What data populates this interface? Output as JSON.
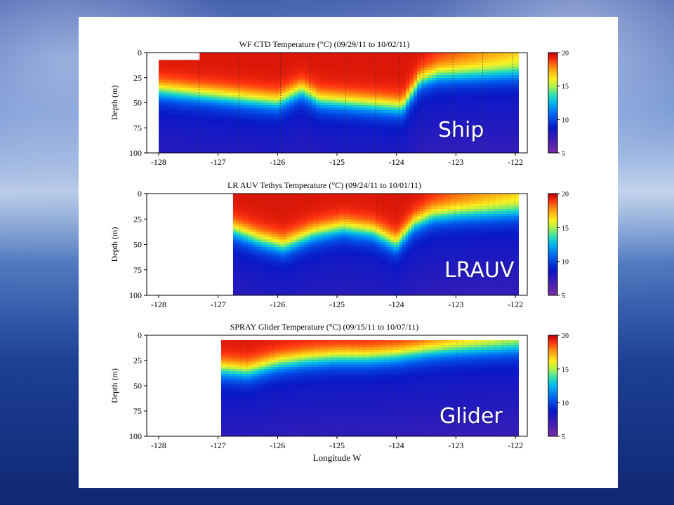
{
  "slide": {
    "labels": [
      "Ship",
      "LRAUV",
      "Glider"
    ]
  },
  "chart_data": [
    {
      "type": "heatmap",
      "title": "WF CTD Temperature (°C) (09/29/11 to 10/02/11)",
      "xlabel": "",
      "ylabel": "Depth (m)",
      "x_ticks": [
        -128,
        -127,
        -126,
        -125,
        -124,
        -123,
        -122
      ],
      "y_ticks": [
        0,
        25,
        50,
        75,
        100
      ],
      "xlim": [
        -128.2,
        -121.8
      ],
      "ylim": [
        100,
        0
      ],
      "y_inverted": true,
      "colorbar": {
        "ticks": [
          5,
          10,
          15,
          20
        ],
        "range": [
          5,
          20
        ]
      },
      "data_extent": {
        "lon": [
          -128.0,
          -121.95
        ],
        "depth": [
          0,
          100
        ],
        "no_data_notch": {
          "lon": [
            -128.0,
            -127.32
          ],
          "depth": [
            0,
            8
          ]
        }
      },
      "station_lons": [
        -127.32,
        -126.65,
        -125.95,
        -125.45,
        -124.85,
        -124.35,
        -123.95,
        -123.55,
        -123.05,
        -122.55,
        -122.05
      ],
      "thermocline_depth": {
        "lon": [
          -128.0,
          -127.0,
          -126.0,
          -125.6,
          -125.3,
          -124.5,
          -123.9,
          -123.6,
          -123.3,
          -122.0
        ],
        "depth": [
          38,
          44,
          50,
          38,
          48,
          52,
          55,
          28,
          22,
          20
        ]
      }
    },
    {
      "type": "heatmap",
      "title": "LR AUV Tethys Temperature (°C) (09/24/11 to 10/01/11)",
      "xlabel": "",
      "ylabel": "Depth (m)",
      "x_ticks": [
        -128,
        -127,
        -126,
        -125,
        -124,
        -123,
        -122
      ],
      "y_ticks": [
        0,
        25,
        50,
        75,
        100
      ],
      "xlim": [
        -128.2,
        -121.8
      ],
      "ylim": [
        100,
        0
      ],
      "y_inverted": true,
      "colorbar": {
        "ticks": [
          5,
          10,
          15,
          20
        ],
        "range": [
          5,
          20
        ]
      },
      "data_extent": {
        "lon": [
          -126.75,
          -121.95
        ],
        "depth": [
          0,
          100
        ]
      },
      "thermocline_depth": {
        "lon": [
          -126.75,
          -126.3,
          -125.9,
          -125.4,
          -124.9,
          -124.4,
          -124.0,
          -123.7,
          -123.4,
          -123.0,
          -122.0
        ],
        "depth": [
          36,
          46,
          52,
          40,
          34,
          38,
          50,
          30,
          22,
          20,
          18
        ]
      }
    },
    {
      "type": "heatmap",
      "title": "SPRAY Glider Temperature (°C) (09/15/11 to 10/07/11)",
      "xlabel": "Longitude W",
      "ylabel": "Depth (m)",
      "x_ticks": [
        -128,
        -127,
        -126,
        -125,
        -124,
        -123,
        -122
      ],
      "y_ticks": [
        0,
        25,
        50,
        75,
        100
      ],
      "xlim": [
        -128.2,
        -121.8
      ],
      "ylim": [
        100,
        0
      ],
      "y_inverted": true,
      "colorbar": {
        "ticks": [
          5,
          10,
          15,
          20
        ],
        "range": [
          5,
          20
        ]
      },
      "data_extent": {
        "lon": [
          -126.95,
          -121.95
        ],
        "depth": [
          5,
          100
        ]
      },
      "thermocline_depth": {
        "lon": [
          -126.95,
          -126.5,
          -126.0,
          -125.5,
          -125.0,
          -124.5,
          -124.0,
          -123.5,
          -123.0,
          -122.0
        ],
        "depth": [
          34,
          36,
          28,
          24,
          22,
          22,
          20,
          16,
          14,
          12
        ]
      }
    }
  ]
}
